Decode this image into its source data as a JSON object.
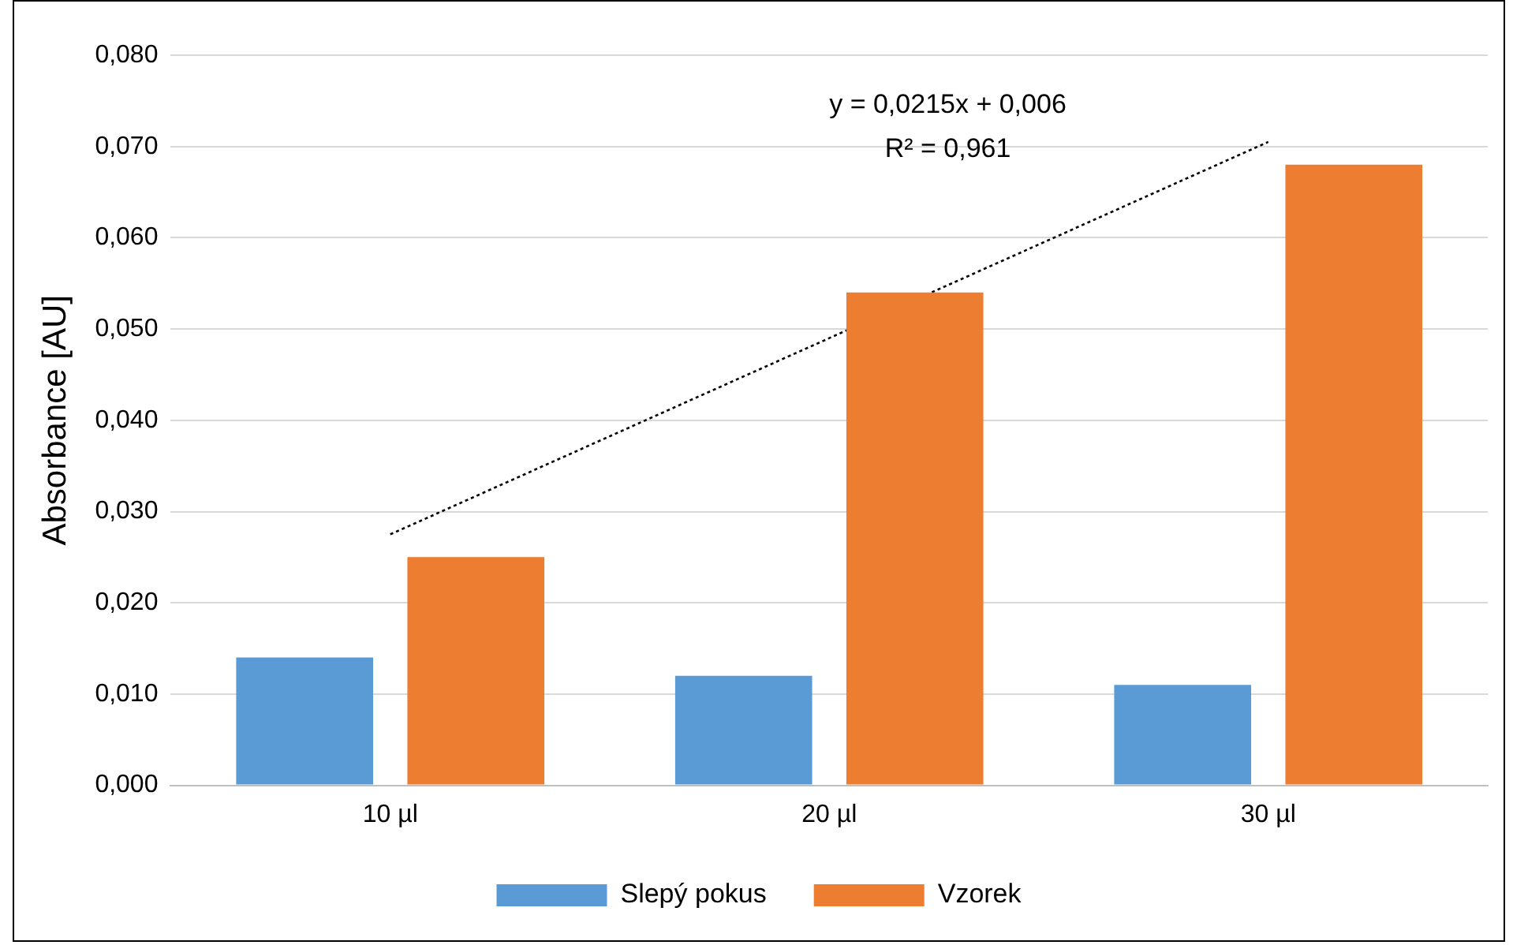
{
  "chart_data": {
    "type": "bar",
    "ylabel": "Absorbance [AU]",
    "categories": [
      "10 µl",
      "20 µl",
      "30 µl"
    ],
    "series": [
      {
        "name": "Slepý pokus",
        "color": "#5b9bd5",
        "values": [
          0.014,
          0.012,
          0.011
        ]
      },
      {
        "name": "Vzorek",
        "color": "#ed7d31",
        "values": [
          0.025,
          0.054,
          0.068
        ]
      },
      {
        "type": "line",
        "x": [
          "10 µl",
          "20 µl",
          "30 µl"
        ],
        "color": "#000000",
        "values": [
          0.0275,
          0.049,
          0.0705
        ],
        "line_style": "dotted",
        "marker": "none"
      }
    ],
    "ylim": [
      0,
      0.08
    ],
    "yticks": [
      {
        "value": 0,
        "label": "0,000"
      },
      {
        "value": 0.01,
        "label": "0,010"
      },
      {
        "value": 0.02,
        "label": "0,020"
      },
      {
        "value": 0.03,
        "label": "0,030"
      },
      {
        "value": 0.04,
        "label": "0,040"
      },
      {
        "value": 0.05,
        "label": "0,050"
      },
      {
        "value": 0.06,
        "label": "0,060"
      },
      {
        "value": 0.07,
        "label": "0,070"
      },
      {
        "value": 0.08,
        "label": "0,080"
      }
    ],
    "grid": "y",
    "legend": "bottom",
    "annotations": [
      "y = 0,0215x + 0,006",
      "R² = 0,961"
    ]
  }
}
